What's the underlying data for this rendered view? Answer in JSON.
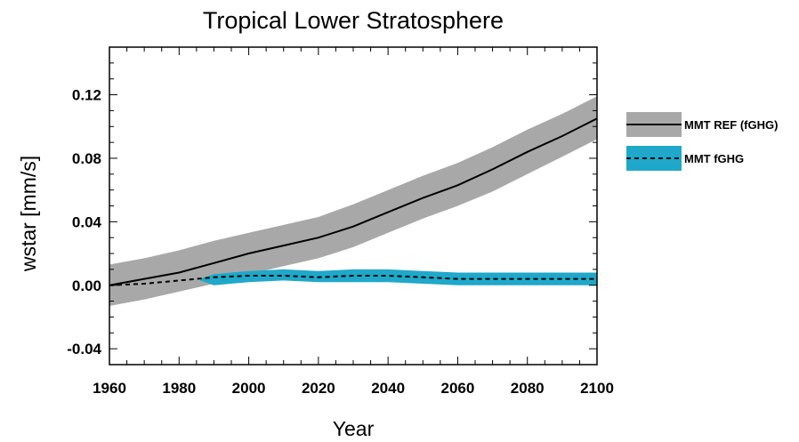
{
  "chart_data": {
    "type": "line",
    "title": "Tropical Lower Stratosphere",
    "xlabel": "Year",
    "ylabel": "wstar [mm/s]",
    "xlim": [
      1960,
      2100
    ],
    "ylim": [
      -0.05,
      0.15
    ],
    "xticks": [
      1960,
      1980,
      2000,
      2020,
      2040,
      2060,
      2080,
      2100
    ],
    "yticks": [
      -0.04,
      0.0,
      0.04,
      0.08,
      0.12
    ],
    "ytick_labels": [
      "-0.04",
      "0.00",
      "0.04",
      "0.08",
      "0.12"
    ],
    "legend_position": "right",
    "grid": false,
    "x": [
      1960,
      1970,
      1980,
      1990,
      2000,
      2010,
      2020,
      2030,
      2040,
      2050,
      2060,
      2070,
      2080,
      2090,
      2100
    ],
    "series": [
      {
        "name": "MMT REF (fGHG)",
        "line_style": "solid",
        "line_color": "#000000",
        "band_color": "#a8a8a8",
        "values": [
          0.0,
          0.004,
          0.008,
          0.014,
          0.02,
          0.025,
          0.03,
          0.037,
          0.046,
          0.055,
          0.063,
          0.073,
          0.084,
          0.094,
          0.105
        ],
        "band_upper": [
          0.013,
          0.017,
          0.022,
          0.028,
          0.033,
          0.038,
          0.043,
          0.051,
          0.06,
          0.069,
          0.077,
          0.087,
          0.098,
          0.108,
          0.119
        ],
        "band_lower": [
          -0.013,
          -0.009,
          -0.004,
          0.001,
          0.007,
          0.012,
          0.017,
          0.024,
          0.033,
          0.042,
          0.05,
          0.059,
          0.07,
          0.081,
          0.092
        ]
      },
      {
        "name": "MMT fGHG",
        "line_style": "dashed",
        "line_color": "#000000",
        "band_color": "#1fa8c9",
        "values": [
          0.0,
          0.001,
          0.003,
          0.005,
          0.006,
          0.006,
          0.005,
          0.006,
          0.006,
          0.005,
          0.004,
          0.004,
          0.004,
          0.004,
          0.004
        ],
        "band_upper": [
          null,
          null,
          null,
          0.007,
          0.009,
          0.01,
          0.009,
          0.01,
          0.01,
          0.009,
          0.008,
          0.008,
          0.008,
          0.008,
          0.008
        ],
        "band_lower": [
          null,
          null,
          null,
          0.0,
          0.002,
          0.003,
          0.002,
          0.002,
          0.002,
          0.001,
          0.0,
          0.0,
          0.0,
          0.0,
          0.0
        ],
        "band_start": 1986
      }
    ]
  }
}
